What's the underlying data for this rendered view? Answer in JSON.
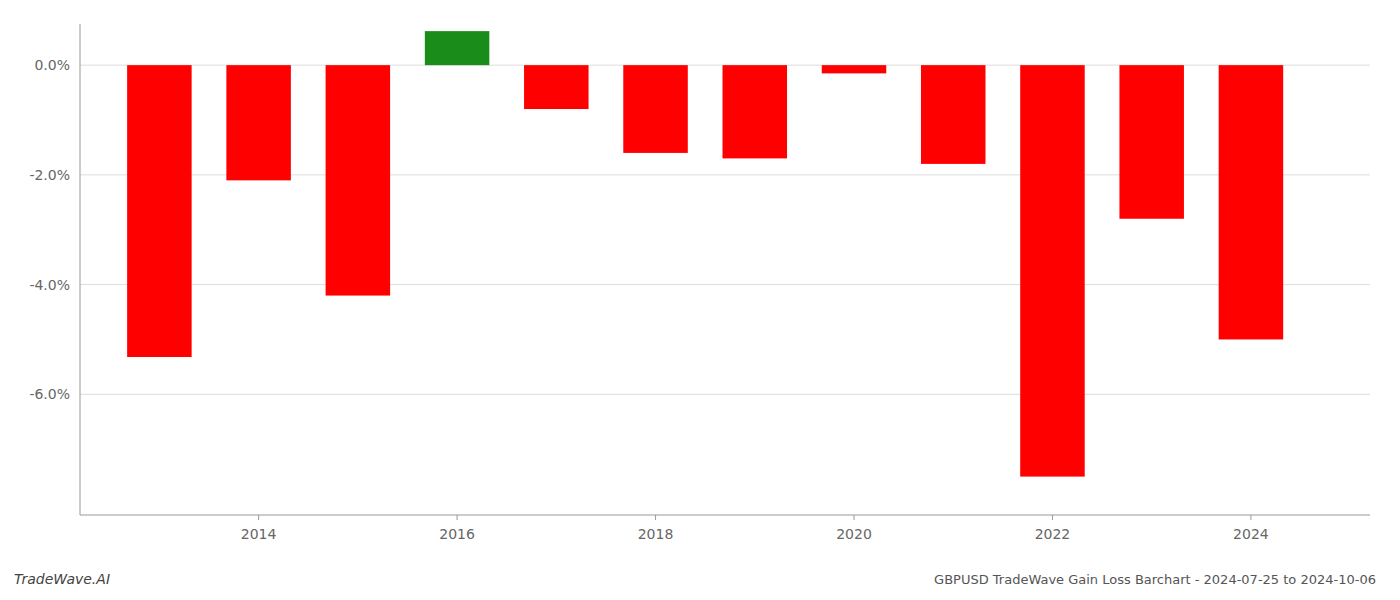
{
  "chart_data": {
    "type": "bar",
    "title": "GBPUSD TradeWave Gain Loss Barchart - 2024-07-25 to 2024-10-06",
    "annotations": [
      "TradeWave.AI"
    ],
    "x": [
      2013,
      2014,
      2015,
      2016,
      2017,
      2018,
      2019,
      2020,
      2021,
      2022,
      2023,
      2024
    ],
    "values": [
      -5.32,
      -2.1,
      -4.2,
      0.62,
      -0.8,
      -1.6,
      -1.7,
      -0.15,
      -1.8,
      -7.5,
      -2.8,
      -5.0
    ],
    "colors": [
      "#ff0000",
      "#ff0000",
      "#ff0000",
      "#1a8c1a",
      "#ff0000",
      "#ff0000",
      "#ff0000",
      "#ff0000",
      "#ff0000",
      "#ff0000",
      "#ff0000",
      "#ff0000"
    ],
    "xlim": [
      2012.2,
      2025.2
    ],
    "xticks": [
      2014,
      2016,
      2018,
      2020,
      2022,
      2024
    ],
    "ylim": [
      -8.2,
      0.75
    ],
    "yticks": [
      {
        "value": 0.0,
        "label": "0.0%"
      },
      {
        "value": -2.0,
        "label": "-2.0%"
      },
      {
        "value": -4.0,
        "label": "-4.0%"
      },
      {
        "value": -6.0,
        "label": "-6.0%"
      }
    ],
    "grid": true
  }
}
